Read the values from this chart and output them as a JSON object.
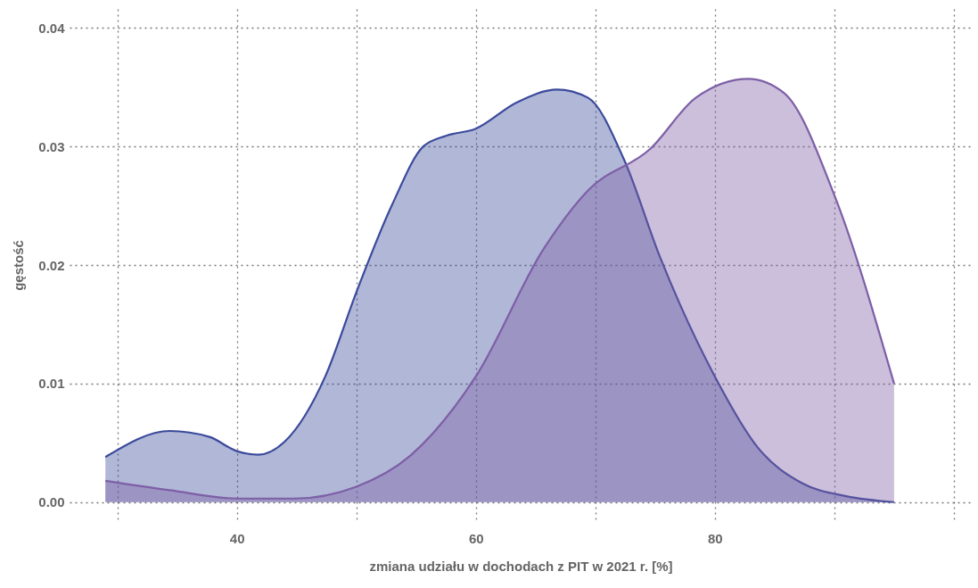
{
  "chart_data": {
    "type": "area",
    "xlabel": "zmiana udziału w dochodach z PIT w 2021 r. [%]",
    "ylabel": "gęstość",
    "xlim": [
      26,
      101.5
    ],
    "ylim": [
      -0.0016,
      0.0416
    ],
    "xticks": [
      {
        "value": 30,
        "label": null
      },
      40,
      {
        "value": 50,
        "label": null
      },
      60,
      {
        "value": 70,
        "label": null
      },
      80,
      {
        "value": 90,
        "label": null
      },
      {
        "value": 100,
        "label": null
      }
    ],
    "yticks": [
      {
        "value": 0,
        "label": "0.00"
      },
      0.01,
      0.02,
      0.03,
      {
        "value": 0.04,
        "label": "0.04"
      }
    ],
    "grid": true,
    "line_style": "solid",
    "series": [
      {
        "color": "#3b4a9b",
        "x": [
          29,
          34.4,
          37.7,
          40,
          41.8,
          44,
          47.4,
          50,
          53,
          55.6,
          57.5,
          60,
          63.4,
          66.8,
          69.4,
          72.4,
          75.4,
          80,
          83.6,
          87.3,
          91,
          95
        ],
        "values": [
          0.0038,
          0.006,
          0.0055,
          0.0043,
          0.004,
          0.0051,
          0.0106,
          0.0177,
          0.0251,
          0.03,
          0.0309,
          0.0315,
          0.0337,
          0.0348,
          0.0341,
          0.0289,
          0.0207,
          0.0106,
          0.0046,
          0.0016,
          0.0005,
          0
        ]
      },
      {
        "color": "#7d5fa6",
        "x": [
          29,
          34.4,
          40,
          44.8,
          50,
          54.5,
          60,
          65.7,
          69.4,
          74.6,
          78.4,
          82.8,
          85.8,
          90,
          95
        ],
        "values": [
          0.0018,
          0.001,
          0.0003,
          0.0003,
          0.0013,
          0.0039,
          0.0106,
          0.0214,
          0.0263,
          0.0298,
          0.0341,
          0.0357,
          0.0345,
          0.0259,
          0.01
        ]
      }
    ]
  }
}
